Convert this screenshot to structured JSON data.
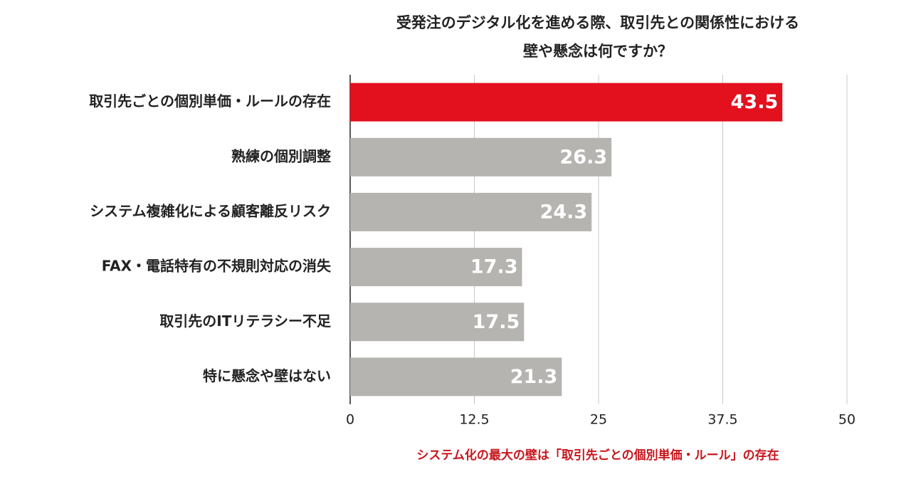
{
  "chart_data": {
    "type": "barh",
    "title": [
      "受発注のデジタル化を進める際、取引先との関係性における",
      "壁や懸念は何ですか？"
    ],
    "categories": [
      "取引先ごとの個別単価・ルールの存在",
      "熟練の個別調整",
      "システム複雑化による顧客離反リスク",
      "FAX・電話特有の不規則対応の消失",
      "取引先のITリテラシー不足",
      "特に懸念や壁はない"
    ],
    "values": [
      43.5,
      26.3,
      24.3,
      17.3,
      17.5,
      21.3
    ],
    "colors": [
      "#e3101e",
      "#b5b4b1",
      "#b5b4b1",
      "#b5b4b1",
      "#b5b4b1",
      "#b5b4b1"
    ],
    "xlim": [
      0,
      50
    ],
    "xticks": [
      0,
      12.5,
      25,
      37.5,
      50
    ],
    "grid": true,
    "annotation": "システム化の最大の壁は「取引先ごとの個別単価・ルール」の存在"
  }
}
